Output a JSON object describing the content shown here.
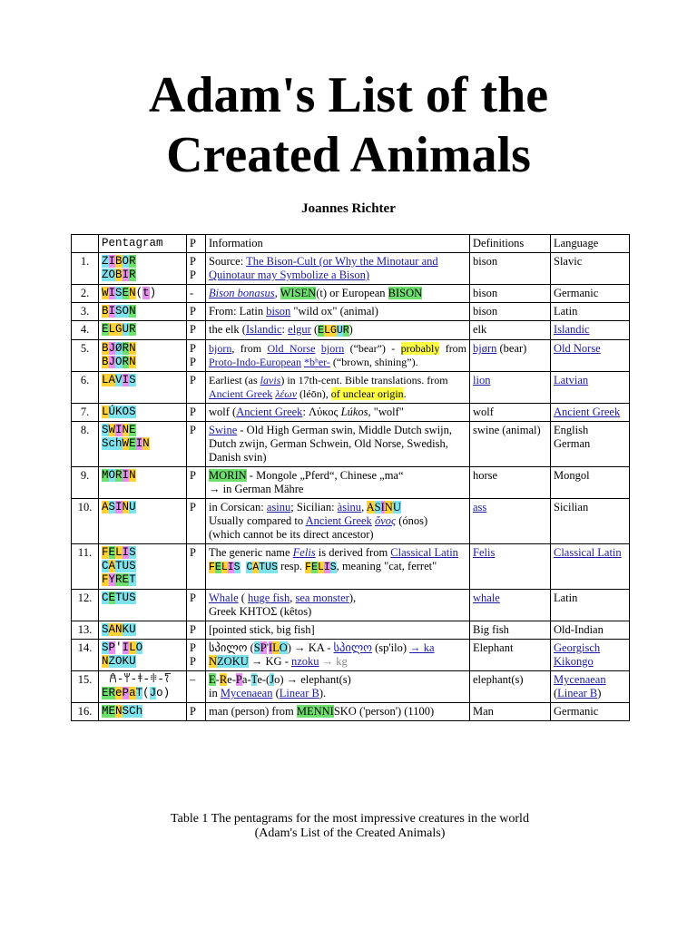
{
  "title_line1": "Adam's List of the",
  "title_line2": "Created Animals",
  "author": "Joannes Richter",
  "headers": {
    "num": "",
    "pentagram": "Pentagram",
    "p": "P",
    "information": "Information",
    "definitions": "Definitions",
    "language": "Language"
  },
  "rows": [
    {
      "num": "1.",
      "pg": [
        "Z",
        "I",
        "B",
        "O",
        "R",
        "|",
        "Z",
        "O",
        "B",
        "I",
        "R"
      ],
      "p": "P P",
      "info": "Source: The Bison-Cult (or Why the Minotaur and Quinotaur may Symbolize a Bison)",
      "def": "bison",
      "lang": "Slavic"
    },
    {
      "num": "2.",
      "pg_text": "WISEN(t)",
      "p": "-",
      "info": "Bison bonasus, WISEN(t) or European BISON",
      "def": "bison",
      "lang": "Germanic"
    },
    {
      "num": "3.",
      "pg_text": "BISON",
      "p": "P",
      "info": "From: Latin bison \"wild ox\" (animal)",
      "def": "bison",
      "lang": "Latin"
    },
    {
      "num": "4.",
      "pg_text": "ELGUR",
      "p": "P",
      "info": "the elk (Islandic: elgur (ELGUR)",
      "def": "elk",
      "lang": "Islandic"
    },
    {
      "num": "5.",
      "pg_text": "BJØRN BJORN",
      "p": "P P",
      "info": "bjorn, from Old Norse bjorn (“bear”) - probably from Proto-Indo-European *bʰer- (“brown, shining”).",
      "def": "bjørn (bear)",
      "lang": "Old Norse"
    },
    {
      "num": "6.",
      "pg_text": "LAVIS",
      "p": "P",
      "info": "Earliest (as lavis) in 17th-cent. Bible translations. from Ancient Greek λέων (léōn), of unclear origin.",
      "def": "lion",
      "lang": "Latvian"
    },
    {
      "num": "7.",
      "pg_text": "LÚKOS",
      "p": "P",
      "info": "wolf (Ancient Greek: Λύκος Lúkos, \"wolf\"",
      "def": "wolf",
      "lang": "Ancient Greek"
    },
    {
      "num": "8.",
      "pg_text": "SWINE SchWEIN",
      "p": "P",
      "info": "Swine - Old High German swin, Middle Dutch swijn, Dutch zwijn, German Schwein, Old Norse, Swedish, Danish svin)",
      "def": "swine (animal)",
      "lang": "English German"
    },
    {
      "num": "9.",
      "pg_text": "MORIN",
      "p": "P",
      "info": "MORIN - Mongole „Pferd“, Chinese „ma“ → in German Mähre",
      "def": "horse",
      "lang": "Mongol"
    },
    {
      "num": "10.",
      "pg_text": "ASINU",
      "p": "P",
      "info": "in Corsican: asinu; Sicilian: àsinu, ASINU Usually compared to Ancient Greek ὄνος (ónos) (which cannot be its direct ancestor)",
      "def": "ass",
      "lang": "Sicilian"
    },
    {
      "num": "11.",
      "pg_text": "FELIS CATUS FYRET",
      "p": "P",
      "info": "The generic name Felis is derived from Classical Latin FELIS CATUS resp. FELIS, meaning \"cat, ferret\"",
      "def": "Felis",
      "lang": "Classical Latin"
    },
    {
      "num": "12.",
      "pg_text": "CETUS",
      "p": "P",
      "info": "Whale ( huge fish, sea monster), Greek ΚΗΤΟΣ (kêtos)",
      "def": "whale",
      "lang": "Latin"
    },
    {
      "num": "13.",
      "pg_text": "SANKU",
      "p": "P",
      "info": "[pointed stick, big fish]",
      "def": "Big fish",
      "lang": "Old-Indian"
    },
    {
      "num": "14.",
      "pg_text": "SP'ILO NZOKU",
      "p": "P P",
      "info": "სპილო (SP'ILO) → KA - სპილო (sp'ilo) → ka NZOKU → KG - nzoku → kg",
      "def": "Elephant",
      "lang": "Georgisch Kikongo"
    },
    {
      "num": "15.",
      "pg_text": "𐀁-𐀩-𐀞-𐀳-𐀍 ERePaT(Jo)",
      "p": "–",
      "info": "E-Re-Pa-Te-(Jo) → elephant(s) in Mycenaean (Linear B).",
      "def": "elephant(s)",
      "lang": "Mycenaean (Linear B)"
    },
    {
      "num": "16.",
      "pg_text": "MENSCh",
      "p": "P",
      "info": "man (person) from MENNISKO ('person') (1100)",
      "def": "Man",
      "lang": "Germanic"
    }
  ],
  "caption_line1": "Table 1  The pentagrams for the most impressive creatures in the world",
  "caption_line2": "(Adam's List of the Created Animals)",
  "colors": {
    "yellow": "#ffd23a",
    "green": "#6fe06f",
    "magenta": "#e88ef0",
    "cyan": "#7fe3ee",
    "link": "#1a1aa6"
  }
}
